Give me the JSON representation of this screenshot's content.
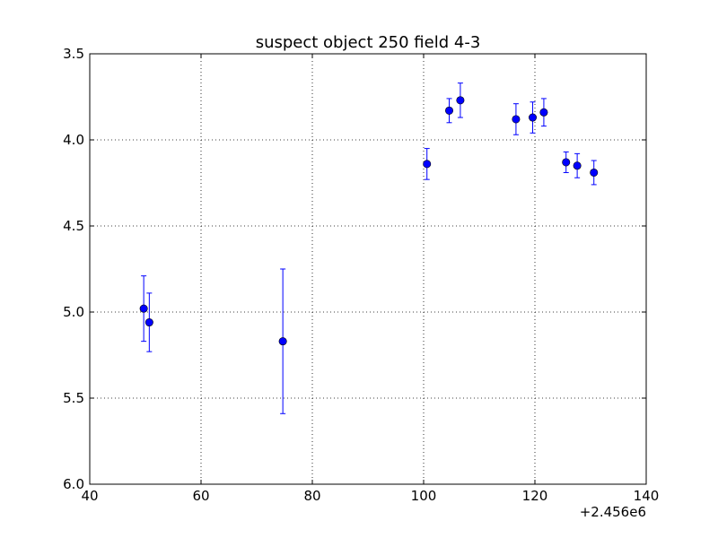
{
  "chart_data": {
    "type": "scatter",
    "title": "suspect object 250 field 4-3",
    "xlabel": "",
    "ylabel": "",
    "x_offset_label": "+2.456e6",
    "xlim": [
      40,
      140
    ],
    "ylim": [
      3.5,
      6.0
    ],
    "y_inverted": true,
    "grid": true,
    "x_ticks": [
      "40",
      "60",
      "80",
      "100",
      "120",
      "140"
    ],
    "y_ticks": [
      "3.5",
      "4.0",
      "4.5",
      "5.0",
      "5.5",
      "6.0"
    ],
    "marker_color": "#0000ff",
    "series": [
      {
        "points": [
          {
            "x": 49.7,
            "y": 4.98,
            "err": 0.19
          },
          {
            "x": 50.7,
            "y": 5.06,
            "err": 0.17
          },
          {
            "x": 74.7,
            "y": 5.17,
            "err": 0.42
          },
          {
            "x": 100.6,
            "y": 4.14,
            "err": 0.09
          },
          {
            "x": 104.6,
            "y": 3.83,
            "err": 0.07
          },
          {
            "x": 106.6,
            "y": 3.77,
            "err": 0.1
          },
          {
            "x": 116.6,
            "y": 3.88,
            "err": 0.09
          },
          {
            "x": 119.6,
            "y": 3.87,
            "err": 0.09
          },
          {
            "x": 121.6,
            "y": 3.84,
            "err": 0.08
          },
          {
            "x": 125.6,
            "y": 4.13,
            "err": 0.06
          },
          {
            "x": 127.6,
            "y": 4.15,
            "err": 0.07
          },
          {
            "x": 130.6,
            "y": 4.19,
            "err": 0.07
          }
        ]
      }
    ]
  }
}
